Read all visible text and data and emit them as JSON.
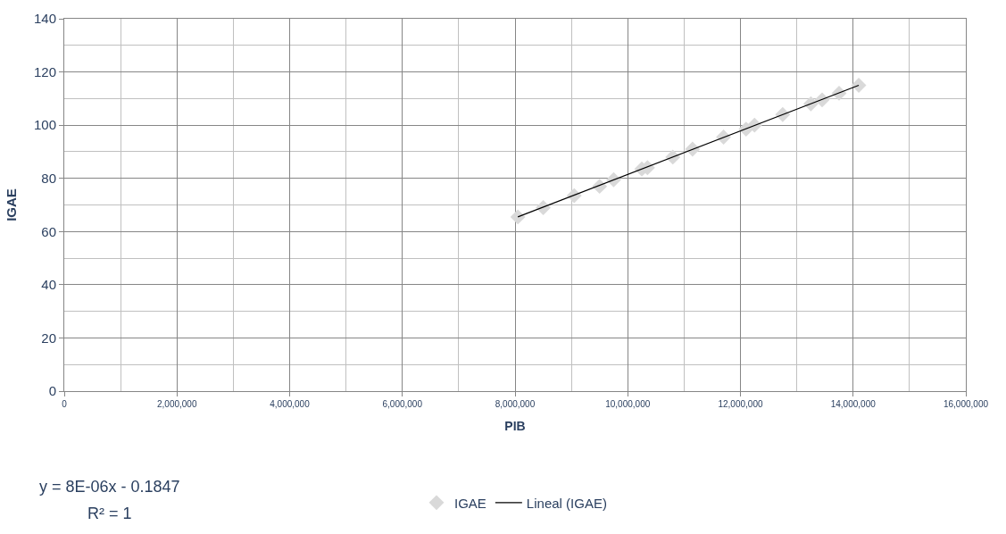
{
  "chart_data": {
    "type": "scatter",
    "xlabel": "PIB",
    "ylabel": "IGAE",
    "xlim": [
      0,
      16000000
    ],
    "xticks": [
      0,
      {
        "value": 2000000,
        "label": "2,000,000"
      },
      {
        "value": 4000000,
        "label": "4,000,000"
      },
      {
        "value": 6000000,
        "label": "6,000,000"
      },
      {
        "value": 8000000,
        "label": "8,000,000"
      },
      {
        "value": 10000000,
        "label": "10,000,000"
      },
      {
        "value": 12000000,
        "label": "12,000,000"
      },
      {
        "value": 14000000,
        "label": "14,000,000"
      },
      {
        "value": 16000000,
        "label": "16,000,000"
      }
    ],
    "ylim": [
      0,
      140
    ],
    "yticks": [
      0,
      20,
      40,
      60,
      80,
      100,
      120,
      140
    ],
    "grid": true,
    "legend": "bottom",
    "series": [
      {
        "name": "IGAE",
        "color": "#d9d9d9",
        "marker": "diamond",
        "x": [
          8050000,
          8500000,
          9050000,
          9500000,
          9750000,
          10250000,
          10350000,
          10800000,
          11150000,
          11700000,
          12100000,
          12250000,
          12750000,
          13250000,
          13450000,
          13750000,
          14100000
        ],
        "values": [
          65.5,
          69,
          73.5,
          77,
          79.5,
          83.5,
          84,
          88,
          91,
          95.5,
          98.5,
          100,
          104,
          108,
          109.5,
          112,
          115
        ]
      },
      {
        "name": "Lineal (IGAE)",
        "type": "line",
        "color": "#000000",
        "line_style": "solid",
        "x": [
          8050000,
          14100000
        ],
        "values": [
          65.5,
          115
        ]
      }
    ],
    "annotations": [
      "y = 8E-06x - 0.1847",
      "R² = 1"
    ]
  }
}
